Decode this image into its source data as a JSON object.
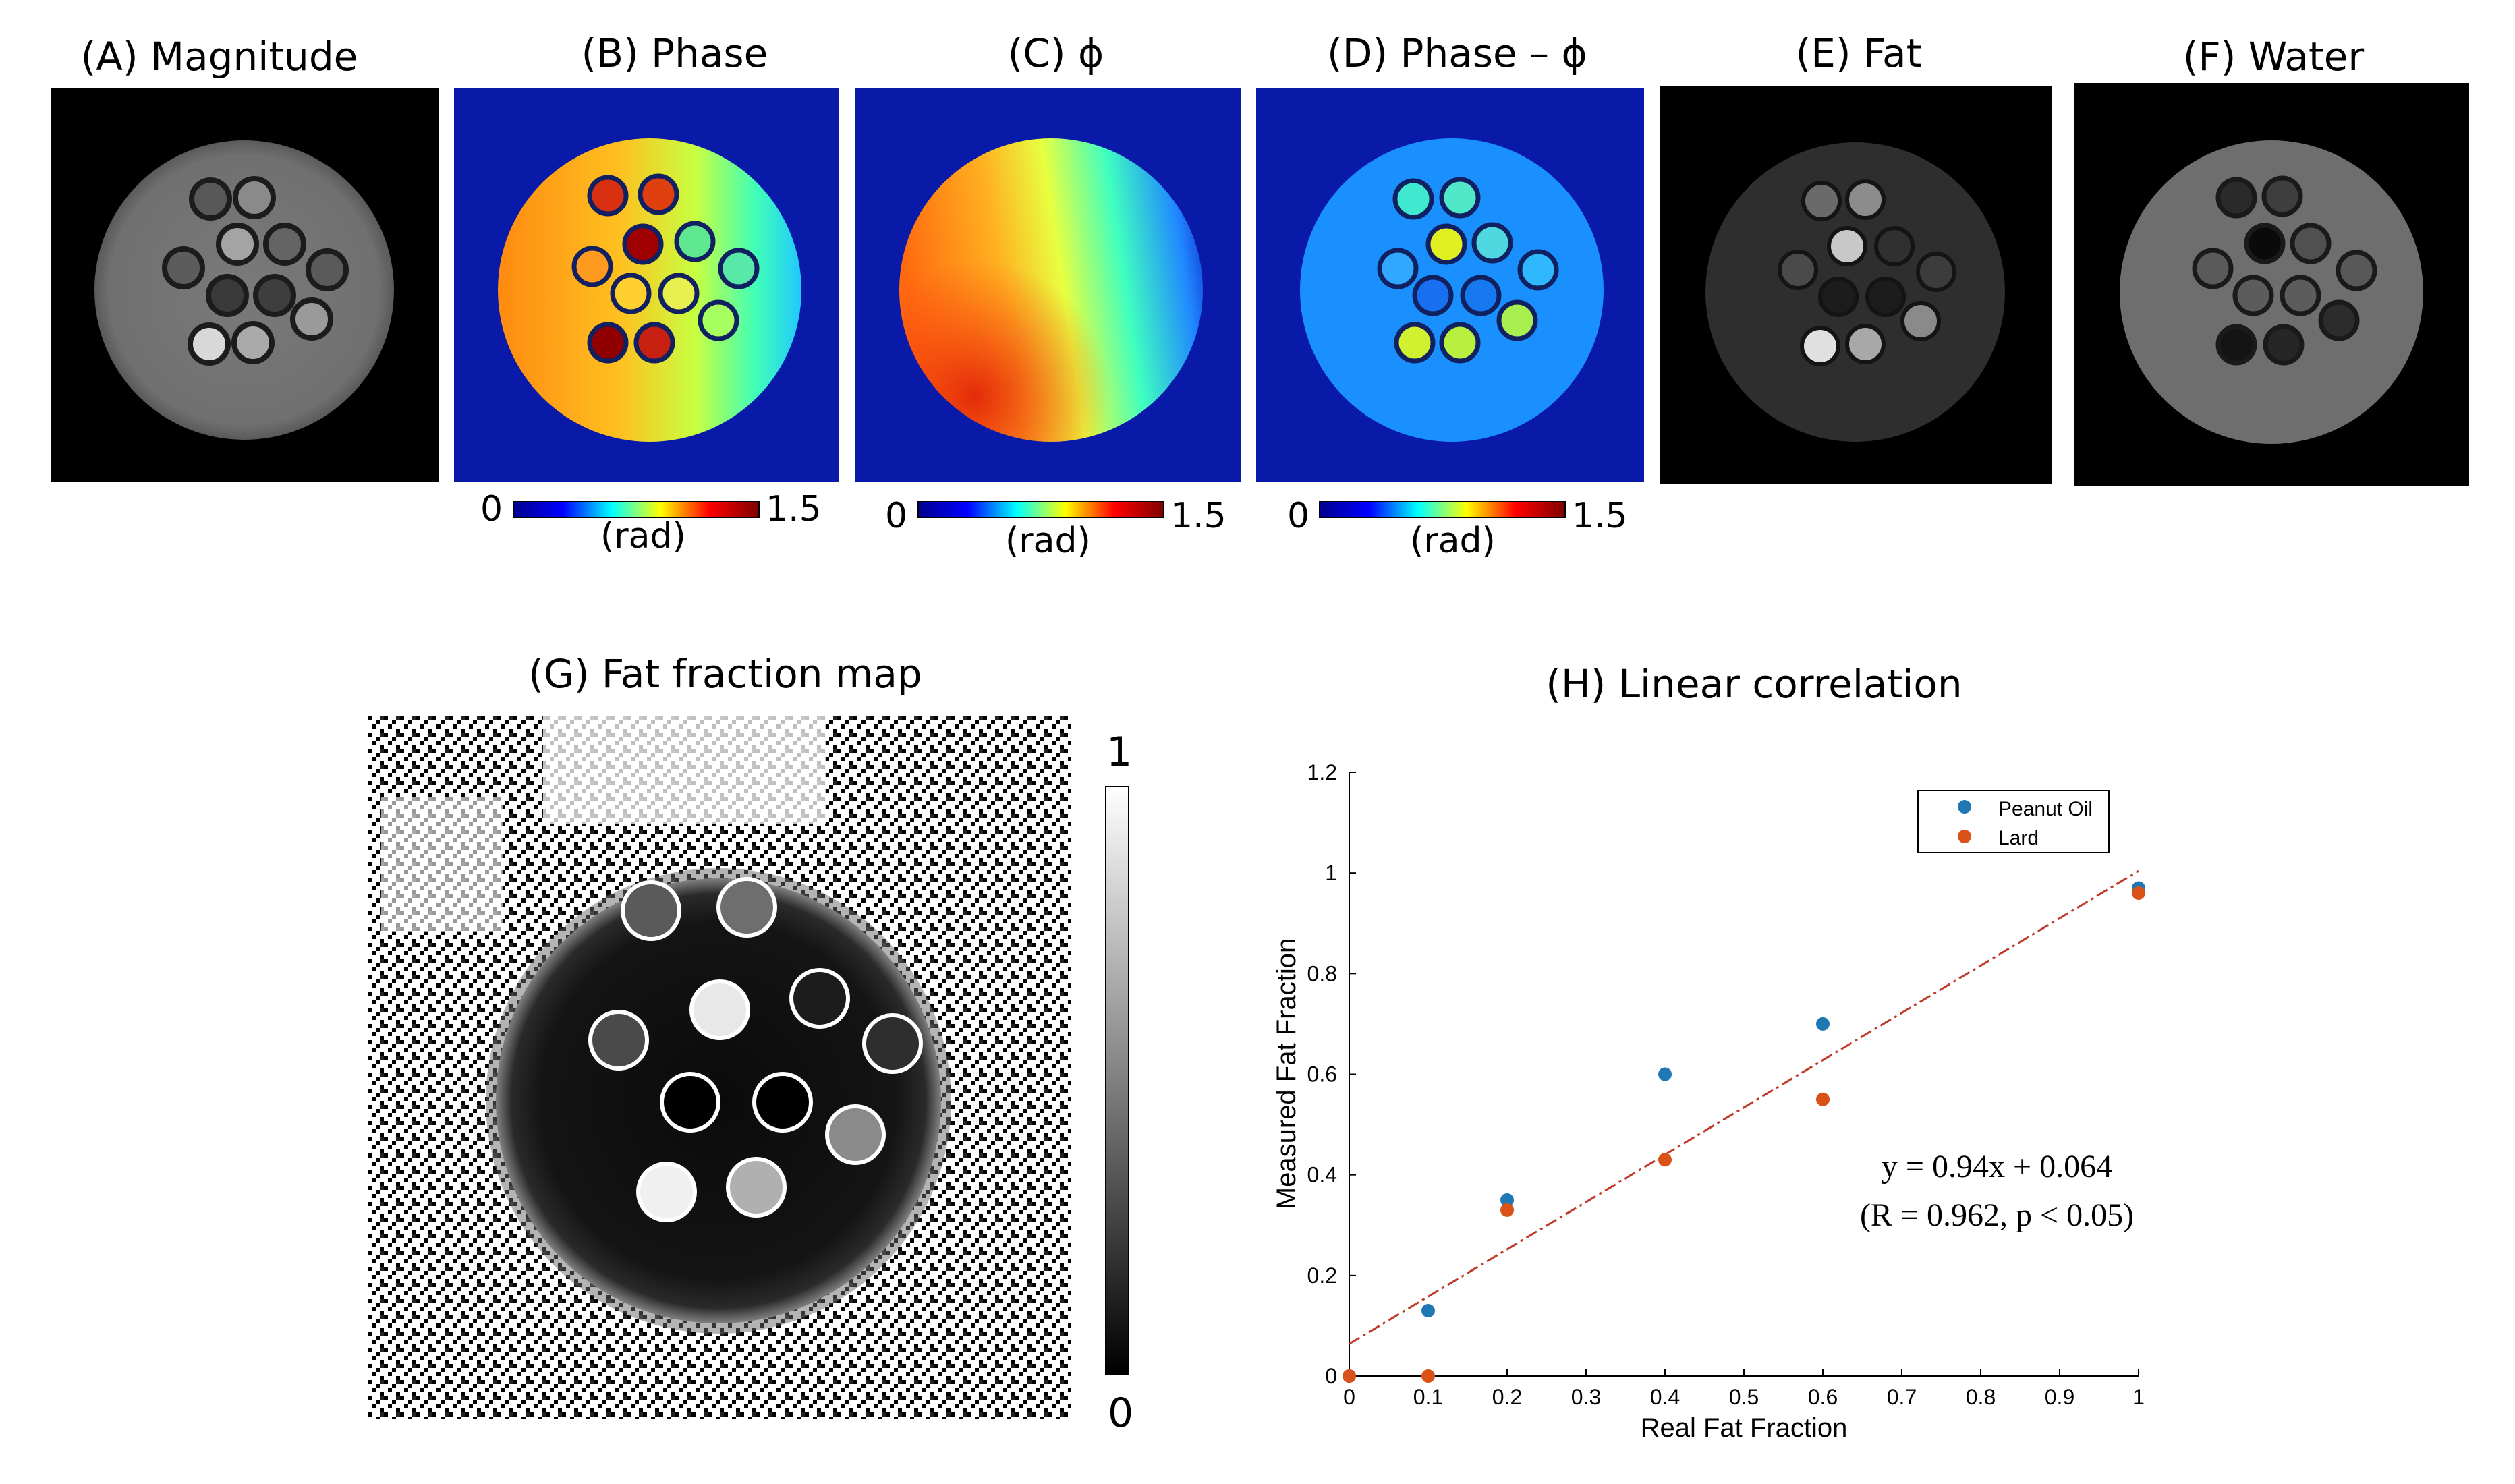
{
  "panels": {
    "a": {
      "title": "(A) Magnitude"
    },
    "b": {
      "title": "(B) Phase"
    },
    "c": {
      "title": "(C) ϕ"
    },
    "d": {
      "title": "(D) Phase – ϕ"
    },
    "e": {
      "title": "(E) Fat"
    },
    "f": {
      "title": "(F) Water"
    },
    "g": {
      "title": "(G) Fat fraction map"
    },
    "h": {
      "title": "(H) Linear correlation"
    }
  },
  "colorbars": {
    "phase": {
      "min": "0",
      "max": "1.5",
      "unit": "(rad)"
    },
    "fatfraction": {
      "min": "0",
      "max": "1"
    }
  },
  "colors": {
    "peanut_oil": "#1f77b4",
    "lard": "#d95319",
    "fit_line": "#c0392b"
  },
  "chart_data": {
    "type": "scatter",
    "title": "(H) Linear correlation",
    "xlabel": "Real Fat Fraction",
    "ylabel": "Measured Fat Fraction",
    "xlim": [
      0,
      1
    ],
    "ylim": [
      0,
      1.2
    ],
    "xticks": [
      "0",
      "0.1",
      "0.2",
      "0.3",
      "0.4",
      "0.5",
      "0.6",
      "0.7",
      "0.8",
      "0.9",
      "1"
    ],
    "yticks": [
      "0",
      "0.2",
      "0.4",
      "0.6",
      "0.8",
      "1",
      "1.2"
    ],
    "series": [
      {
        "name": "Peanut Oil",
        "x": [
          0,
          0.1,
          0.2,
          0.4,
          0.6,
          1.0
        ],
        "y": [
          0,
          0.13,
          0.35,
          0.6,
          0.7,
          0.97
        ]
      },
      {
        "name": "Lard",
        "x": [
          0,
          0.1,
          0.2,
          0.4,
          0.6,
          1.0
        ],
        "y": [
          0,
          0,
          0.33,
          0.43,
          0.55,
          0.96
        ]
      }
    ],
    "fit": {
      "slope": 0.94,
      "intercept": 0.064
    },
    "annotation_line1": "y = 0.94x + 0.064",
    "annotation_line2": "(R = 0.962, p < 0.05)",
    "legend_position": "top-right"
  }
}
